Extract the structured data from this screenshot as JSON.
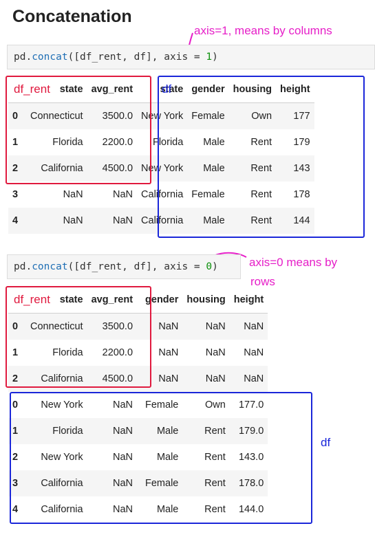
{
  "title": "Concatenation",
  "cell1": {
    "code_prefix": "pd.",
    "code_fn": "concat",
    "code_mid": "([df_rent, df], axis = ",
    "code_num": "1",
    "code_suffix": ")",
    "annotation": "axis=1, means by columns",
    "label_left": "df_rent",
    "label_right": "df",
    "columns": [
      "state",
      "avg_rent",
      "state",
      "gender",
      "housing",
      "height"
    ],
    "rows": [
      {
        "idx": "0",
        "cells": [
          "Connecticut",
          "3500.0",
          "New York",
          "Female",
          "Own",
          "177"
        ]
      },
      {
        "idx": "1",
        "cells": [
          "Florida",
          "2200.0",
          "Florida",
          "Male",
          "Rent",
          "179"
        ]
      },
      {
        "idx": "2",
        "cells": [
          "California",
          "4500.0",
          "New York",
          "Male",
          "Rent",
          "143"
        ]
      },
      {
        "idx": "3",
        "cells": [
          "NaN",
          "NaN",
          "California",
          "Female",
          "Rent",
          "178"
        ]
      },
      {
        "idx": "4",
        "cells": [
          "NaN",
          "NaN",
          "California",
          "Male",
          "Rent",
          "144"
        ]
      }
    ]
  },
  "cell2": {
    "code_prefix": "pd.",
    "code_fn": "concat",
    "code_mid": "([df_rent, df], axis = ",
    "code_num": "0",
    "code_suffix": ")",
    "annotation_line1": "axis=0 means by",
    "annotation_line2": "rows",
    "label_left": "df_rent",
    "label_right": "df",
    "columns": [
      "state",
      "avg_rent",
      "gender",
      "housing",
      "height"
    ],
    "rows": [
      {
        "idx": "0",
        "cells": [
          "Connecticut",
          "3500.0",
          "NaN",
          "NaN",
          "NaN"
        ]
      },
      {
        "idx": "1",
        "cells": [
          "Florida",
          "2200.0",
          "NaN",
          "NaN",
          "NaN"
        ]
      },
      {
        "idx": "2",
        "cells": [
          "California",
          "4500.0",
          "NaN",
          "NaN",
          "NaN"
        ]
      },
      {
        "idx": "0",
        "cells": [
          "New York",
          "NaN",
          "Female",
          "Own",
          "177.0"
        ]
      },
      {
        "idx": "1",
        "cells": [
          "Florida",
          "NaN",
          "Male",
          "Rent",
          "179.0"
        ]
      },
      {
        "idx": "2",
        "cells": [
          "New York",
          "NaN",
          "Male",
          "Rent",
          "143.0"
        ]
      },
      {
        "idx": "3",
        "cells": [
          "California",
          "NaN",
          "Female",
          "Rent",
          "178.0"
        ]
      },
      {
        "idx": "4",
        "cells": [
          "California",
          "NaN",
          "Male",
          "Rent",
          "144.0"
        ]
      }
    ]
  },
  "colors": {
    "red_box": "#e0193e",
    "blue_box": "#1a26d9",
    "annotation": "#e61ec8"
  }
}
